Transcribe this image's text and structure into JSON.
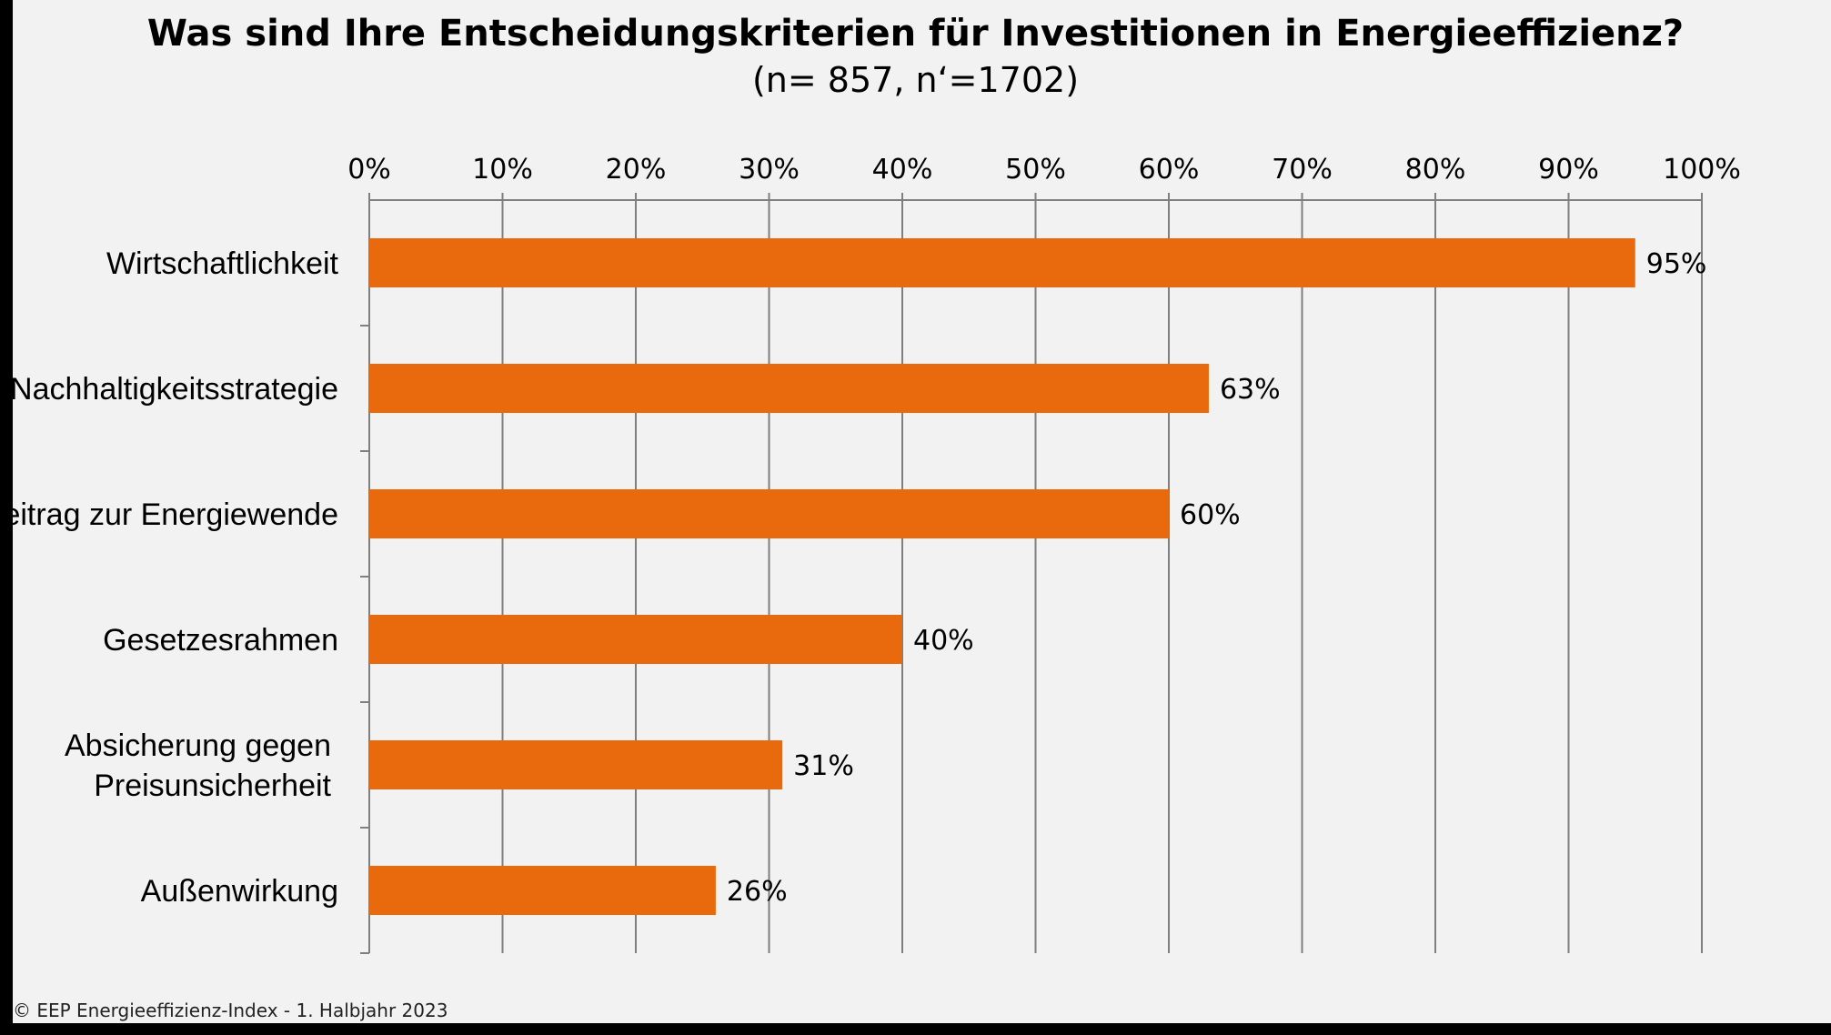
{
  "colors": {
    "background": "#f2f2f2",
    "bar": "#e96a0c",
    "grid": "#7f7f7f"
  },
  "footer": {
    "credit": "© EEP Energieeffizienz-Index - 1. Halbjahr 2023"
  },
  "chart_data": {
    "type": "bar",
    "orientation": "horizontal",
    "title": "Was sind Ihre Entscheidungskriterien für Investitionen in Energieeffizienz?",
    "subtitle": "(n= 857, n‘=1702)",
    "categories": [
      "Wirtschaftlichkeit",
      "Nachhaltigkeitsstrategie",
      "Beitrag zur Energiewende",
      "Gesetzesrahmen",
      "Absicherung gegen\nPreisunsicherheit",
      "Außenwirkung"
    ],
    "values": [
      95,
      63,
      60,
      40,
      31,
      26
    ],
    "data_labels": [
      "95%",
      "63%",
      "60%",
      "40%",
      "31%",
      "26%"
    ],
    "xlim": [
      0,
      100
    ],
    "x_ticks": [
      0,
      10,
      20,
      30,
      40,
      50,
      60,
      70,
      80,
      90,
      100
    ],
    "x_tick_labels": [
      "0%",
      "10%",
      "20%",
      "30%",
      "40%",
      "50%",
      "60%",
      "70%",
      "80%",
      "90%",
      "100%"
    ],
    "x_axis_position": "top",
    "grid": true,
    "legend": "none"
  }
}
